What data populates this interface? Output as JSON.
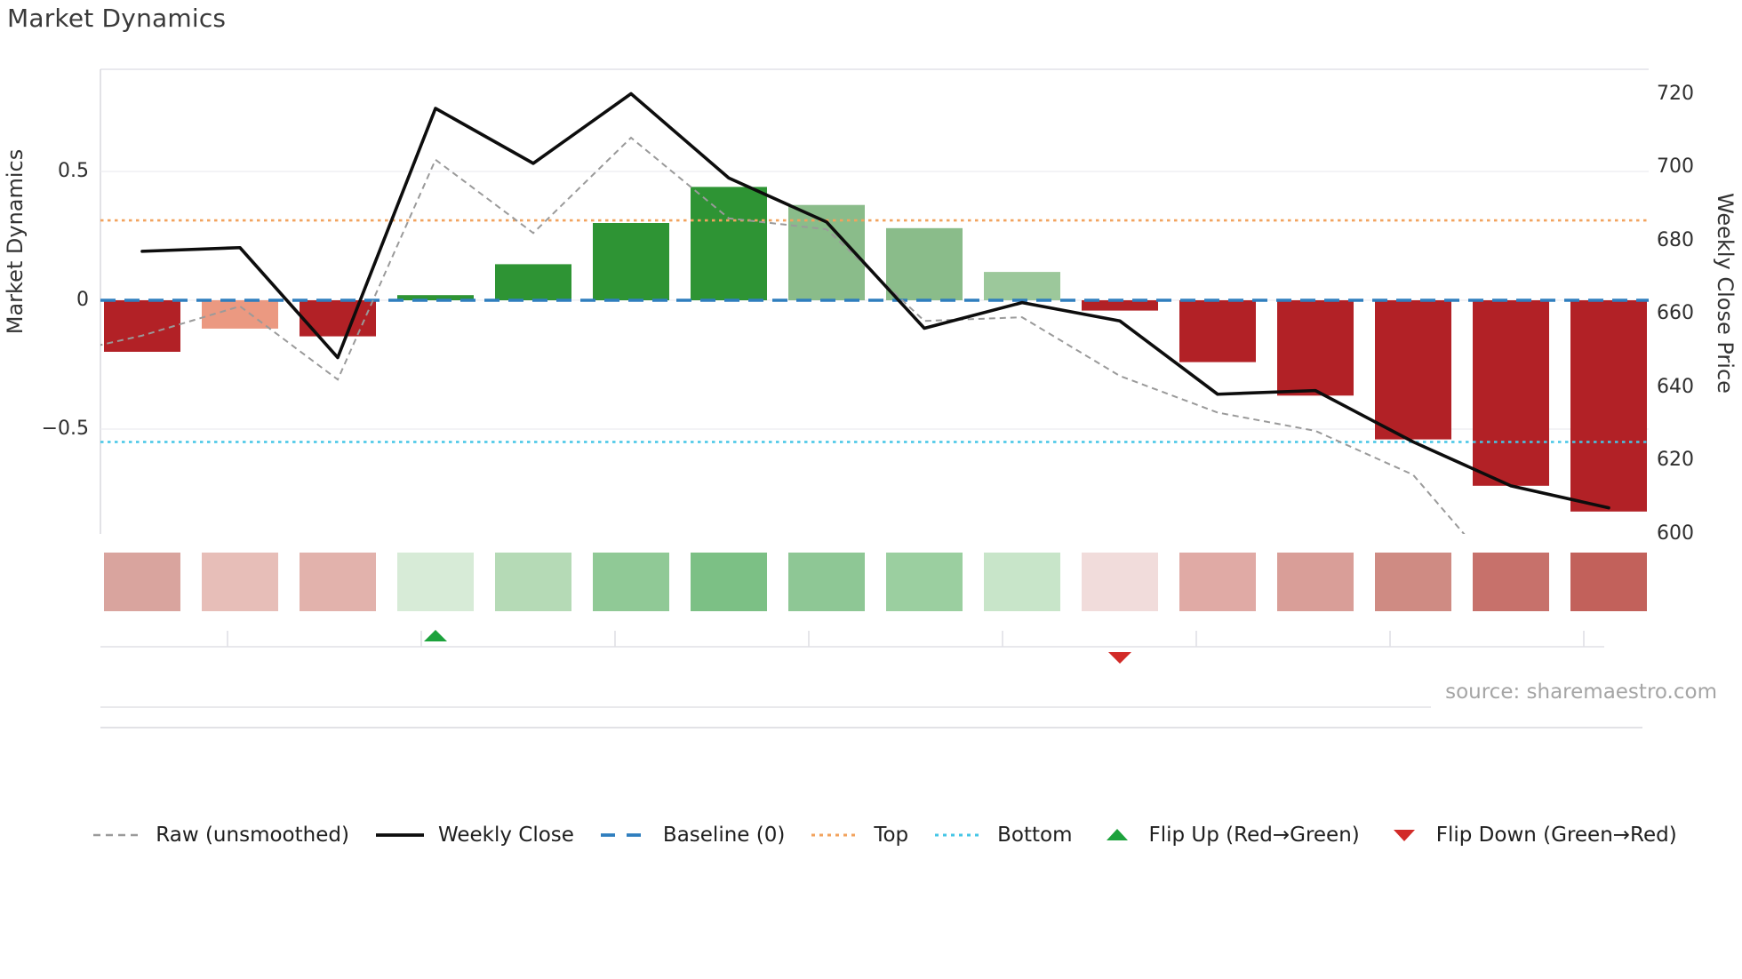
{
  "title": "Market Dynamics",
  "source_caption": "source: sharemaestro.com",
  "left_axis": {
    "label": "Market Dynamics",
    "ticks": [
      {
        "value": 0.5,
        "label": "0.5"
      },
      {
        "value": 0,
        "label": "0"
      },
      {
        "value": -0.5,
        "label": "−0.5"
      }
    ]
  },
  "right_axis": {
    "label": "Weekly Close Price",
    "ticks": [
      {
        "value": 720,
        "label": "720"
      },
      {
        "value": 700,
        "label": "700"
      },
      {
        "value": 680,
        "label": "680"
      },
      {
        "value": 660,
        "label": "660"
      },
      {
        "value": 640,
        "label": "640"
      },
      {
        "value": 620,
        "label": "620"
      },
      {
        "value": 600,
        "label": "600"
      }
    ]
  },
  "legend": {
    "items": [
      {
        "id": "raw",
        "swatch": "gray-dashed-line",
        "label": "Raw (unsmoothed)"
      },
      {
        "id": "weekly-close",
        "swatch": "black-solid-line",
        "label": "Weekly Close"
      },
      {
        "id": "baseline",
        "swatch": "blue-dashed-line",
        "label": "Baseline (0)"
      },
      {
        "id": "top",
        "swatch": "orange-dotted-line",
        "label": "Top"
      },
      {
        "id": "bottom",
        "swatch": "cyan-dotted-line",
        "label": "Bottom"
      },
      {
        "id": "flip-up",
        "swatch": "green-up-triangle",
        "label": "Flip Up (Red→Green)"
      },
      {
        "id": "flip-down",
        "swatch": "red-down-triangle",
        "label": "Flip Down (Green→Red)"
      }
    ]
  },
  "colors": {
    "bar_negative": "#b22126",
    "bar_negative_light": "#eb9981",
    "bar_positive_strong": "#2e9434",
    "bar_positive_medium": "#8abc8a",
    "bar_positive_light": "#9cc89b",
    "weekly_close_line": "#0d0d0d",
    "raw_line": "#9a9a9a",
    "baseline_line": "#2f7ebe",
    "top_line": "#f2a35e",
    "bottom_line": "#45c6e6",
    "flip_up_marker": "#1ca23c",
    "flip_down_marker": "#d22b28",
    "gridline": "#ececf1",
    "panel_border": "#e2e2e8"
  },
  "chart_data": {
    "type": "bar+line combo with heatmap strip",
    "x_unit": "week index",
    "weeks": [
      1,
      2,
      3,
      4,
      5,
      6,
      7,
      8,
      9,
      10,
      11,
      12,
      13,
      14,
      15,
      16
    ],
    "left_ylim": [
      -0.9,
      0.95
    ],
    "right_ylim": [
      600,
      727
    ],
    "grid": "horizontal at 0.5, 0, -0.5",
    "legend_position": "bottom center",
    "series": [
      {
        "name": "Market Dynamics",
        "kind": "bar",
        "axis": "left",
        "values": [
          -0.2,
          -0.11,
          -0.14,
          0.02,
          0.14,
          0.3,
          0.44,
          0.37,
          0.28,
          0.11,
          -0.04,
          -0.24,
          -0.37,
          -0.54,
          -0.72,
          -0.82
        ]
      },
      {
        "name": "Weekly Close",
        "kind": "line",
        "axis": "right",
        "values": [
          677,
          678,
          648,
          716,
          701,
          720,
          697,
          685,
          656,
          663,
          658,
          638,
          639,
          625,
          613,
          607
        ]
      },
      {
        "name": "Raw (unsmoothed)",
        "kind": "dashed-line",
        "axis": "right",
        "start_week": 0,
        "note": "starts one step before week 1 and last point falls below visible area (clipped)",
        "values": [
          648,
          654,
          662,
          642,
          702,
          682,
          708,
          686,
          683,
          658,
          659,
          643,
          633,
          628,
          616,
          585
        ]
      }
    ],
    "reference_lines": {
      "baseline": 0,
      "top": 0.31,
      "bottom": -0.55
    },
    "bar_colors": [
      "#b22126",
      "#eb9981",
      "#b22126",
      "#2e9434",
      "#2e9434",
      "#2e9434",
      "#2e9434",
      "#8abc8a",
      "#8abc8a",
      "#9cc89b",
      "#b22126",
      "#b22126",
      "#b22126",
      "#b22126",
      "#b22126",
      "#b22126"
    ],
    "heatmap_colors": [
      "#d9a49e",
      "#e7beb8",
      "#e2b2ac",
      "#d7ebd7",
      "#b5dab6",
      "#90c996",
      "#7cc085",
      "#8ec795",
      "#9bcfa0",
      "#c8e5c9",
      "#f1dcdb",
      "#e0aaa5",
      "#d99e98",
      "#cf8b83",
      "#c7716b",
      "#c2615b"
    ],
    "markers": [
      {
        "type": "flip_up",
        "week": 4
      },
      {
        "type": "flip_down",
        "week": 11
      }
    ]
  }
}
